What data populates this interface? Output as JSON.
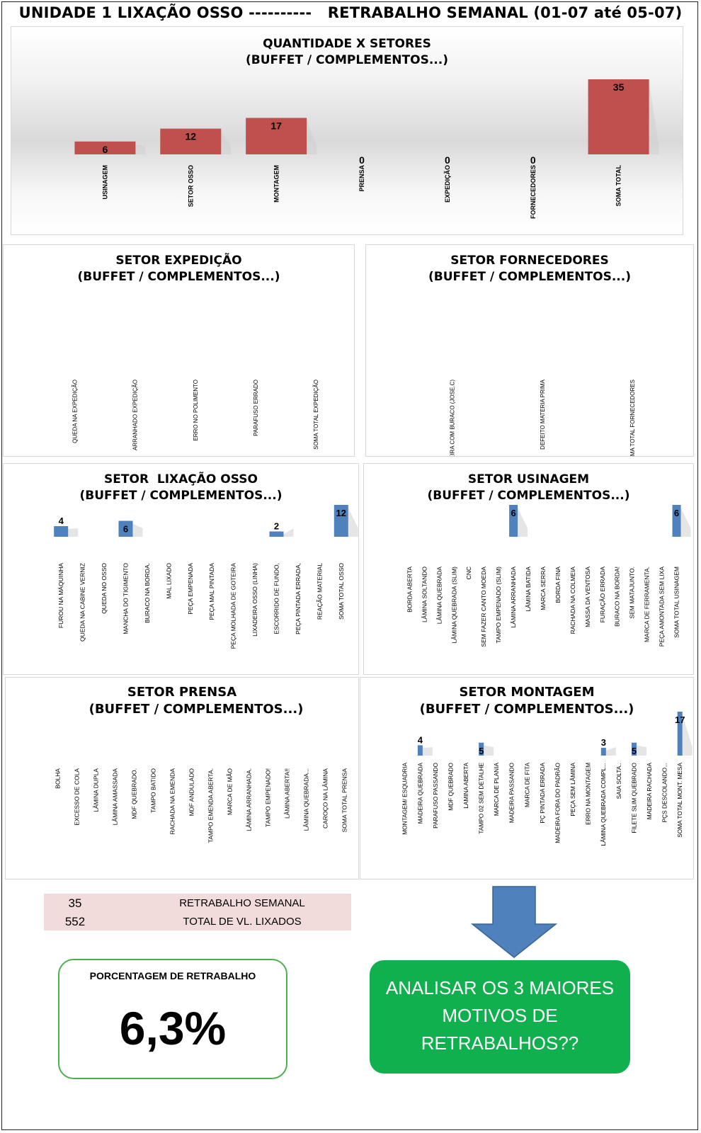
{
  "page": {
    "title": "UNIDADE 1 LIXAÇÃO OSSO ----------   RETRABALHO SEMANAL (01-07 até 05-07)"
  },
  "colors": {
    "red_bar": "#c0504d",
    "blue_bar": "#4f81bd",
    "summary_bg": "#f2dcdb",
    "action_green": "#11b04e",
    "pct_border": "#4caf50",
    "arrow_blue": "#4f81bd"
  },
  "chart_data": [
    {
      "id": "quantidade",
      "type": "bar",
      "title": "QUANTIDADE X SETORES",
      "subtitle": "(BUFFET / COMPLEMENTOS...)",
      "categories": [
        "USINAGEM",
        "SETOR OSSO",
        "MONTAGEM",
        "PRENSA",
        "EXPEDIÇÃO",
        "FORNECEDORES",
        "SOMA TOTAL"
      ],
      "values": [
        6,
        12,
        17,
        0,
        0,
        0,
        35
      ],
      "color": "#c0504d",
      "ylim": [
        0,
        35
      ]
    },
    {
      "id": "expedicao",
      "type": "bar",
      "title": "SETOR EXPEDIÇÃO",
      "subtitle": "(BUFFET / COMPLEMENTOS...)",
      "categories": [
        "QUEDA NA EXPEDIÇÃO",
        "ARRANHADO EXPEDIÇÃO",
        "ERRO NO POLIMENTO",
        "PARAFUSO ERRADO",
        "SOMA TOTAL EXPEDIÇÃO"
      ],
      "values": [
        null,
        null,
        null,
        null,
        null
      ]
    },
    {
      "id": "fornecedores",
      "type": "bar",
      "title": "SETOR FORNECEDORES",
      "subtitle": "(BUFFET / COMPLEMENTOS...)",
      "categories": [
        "MADEIRA COM BURACO (JOSE.C)",
        "DEFEITO MATERIA PRIMA",
        "SOMA TOTAL FORNECEDORES"
      ],
      "values": [
        null,
        null,
        null
      ]
    },
    {
      "id": "lixacao",
      "type": "bar",
      "title": "SETOR  LIXAÇÃO OSSO",
      "subtitle": "(BUFFET / COMPLEMENTOS...)",
      "categories": [
        "FUROU NA MÁQUINHA",
        "QUEDA  NA CABINE VERNIZ",
        "QUEDA NO OSSO",
        "MANCHA DO TIGIMENTO",
        "BURACO NA BORDA.",
        "MAL LIXADO",
        "PEÇA EMPENADA",
        "PEÇA MAL PINTADA",
        "PEÇA MOLHADA DE GOTEIRA",
        "LIXADEIRA OSSO (LINHA)",
        "ESCORRIDO DE FUNDO,",
        "PEÇA PINTADA ERRADA,",
        "REAÇÃO MATERIAL",
        "SOMA TOTAL OSSO"
      ],
      "values": [
        4,
        null,
        null,
        6,
        null,
        null,
        null,
        null,
        null,
        null,
        2,
        null,
        null,
        12
      ],
      "color": "#4f81bd",
      "ylim": [
        0,
        12
      ]
    },
    {
      "id": "usinagem",
      "type": "bar",
      "title": "SETOR USINAGEM",
      "subtitle": "(BUFFET / COMPLEMENTOS...)",
      "categories": [
        "BORDA ABERTA",
        "LÂMINA SOLTANDO",
        "LÂMINA QUEBRADA",
        "LÂMINA QUEBRADA (SLIM)",
        "CNC",
        "SEM FAZER CANTO MOEDA",
        "TAMPO EMPENADO (SLIM)",
        "LÂMINA ARRANHADA",
        "LÂMINA BATIDA",
        "MARCA SERRA",
        "BORDA FINA",
        "RACHADA NA COLMEIA",
        "MASSA DA VENTOSA",
        "FURAÇÃO ERRADA",
        "BURACO NA BORDA!",
        "SEM MATAJUNTO.",
        "MARCA DE FERRAMENTA.",
        "PEÇA AMONTADA SEM LIXA",
        "SOMA TOTAL USINAGEM"
      ],
      "values": [
        null,
        null,
        null,
        null,
        null,
        null,
        null,
        6,
        null,
        null,
        null,
        null,
        null,
        null,
        null,
        null,
        null,
        null,
        6
      ],
      "color": "#4f81bd",
      "ylim": [
        0,
        6
      ]
    },
    {
      "id": "prensa",
      "type": "bar",
      "title": "SETOR PRENSA",
      "subtitle": "(BUFFET / COMPLEMENTOS...)",
      "categories": [
        "BOLHA",
        "EXCESSO DE COLA",
        "LÂMINA DUPLA",
        "LÂMINA AMASSADA",
        "MDF QUEBRADO.",
        "TAMPO BATIDO",
        "RACHADA NA EMENDA",
        "MDF ANDULADO",
        "TAMPO EMENDA ABERTA.",
        "MARCA DE MÃO",
        "LÂMINA ARRANHADA.",
        "TAMPO EMPENADO!",
        "LÂMINA ABERTA!!",
        "LÂMINA QUEBRADA...",
        "CAROÇO NA LÂMINA",
        "SOMA TOTAL PRENSA"
      ],
      "values": [
        null,
        null,
        null,
        null,
        null,
        null,
        null,
        null,
        null,
        null,
        null,
        null,
        null,
        null,
        null,
        null
      ]
    },
    {
      "id": "montagem",
      "type": "bar",
      "title": "SETOR MONTAGEM",
      "subtitle": "(BUFFET / COMPLEMENTOS...)",
      "categories": [
        "MONTAGEM/ ESQUADRIA",
        "MADEIRA QUEBRADA",
        "PARAFUSO PASSANDO",
        "MDF QUEBRADO",
        "LAMINA ABERTA",
        "TAMPO 02 SEM DETALHE",
        "MARCA DE PLANIA",
        "MADEIRA PASSANDO",
        "MARCA DE FITA",
        "PÇ PINTADA ERRADA",
        "MADEIRA FORA DO PADRÃO",
        "PEÇA SEM LÂMINA",
        "ERRO NA MONTAGEM",
        "LÂMINA QUEBRADA COMPL...",
        "SAIA SOLTA..",
        "FILETE SLIM QUEBRADO",
        "MADEIRA RACHADA",
        "PÇS DESCOLANDO...",
        "SOMA TOTAL MONT. MESA"
      ],
      "values": [
        null,
        4,
        null,
        null,
        null,
        5,
        null,
        null,
        null,
        null,
        null,
        null,
        null,
        3,
        null,
        5,
        null,
        null,
        17
      ],
      "color": "#4f81bd",
      "ylim": [
        0,
        17
      ]
    }
  ],
  "summary": [
    {
      "value": "35",
      "label": "RETRABALHO SEMANAL"
    },
    {
      "value": "552",
      "label": "TOTAL DE VL. LIXADOS"
    }
  ],
  "percentage": {
    "label": "PORCENTAGEM DE RETRABALHO",
    "value": "6,3%"
  },
  "action": {
    "line1": "ANALISAR OS 3 MAIORES",
    "line2": "MOTIVOS DE",
    "line3": "RETRABALHOS??"
  }
}
